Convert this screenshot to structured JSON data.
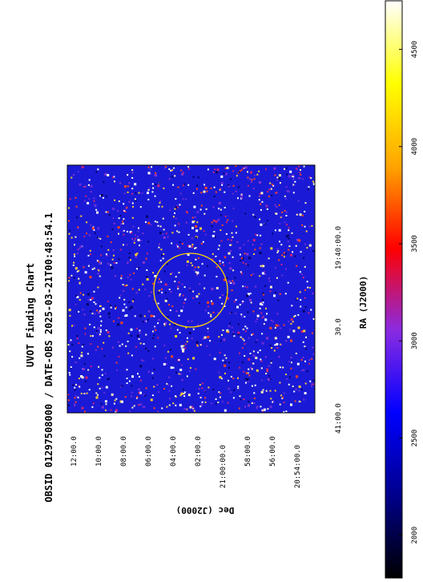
{
  "header": {
    "title": "UVOT Finding Chart",
    "subtitle": "OBSID 01297508000 / DATE-OBS 2025-03-21T00:48:54.1"
  },
  "axes": {
    "ra_label": "RA (J2000)",
    "dec_label": "Dec (J2000)",
    "ra_ticks": [
      "41:00.0",
      "30.0",
      "19:40:00.0"
    ],
    "dec_ticks": [
      "12:00.0",
      "10:00.0",
      "08:00.0",
      "06:00.0",
      "04:00.0",
      "02:00.0",
      "21:00:00.0",
      "58:00.0",
      "56:00.0",
      "20:54:00.0"
    ]
  },
  "colorbar": {
    "ticks": [
      "2000",
      "2500",
      "3000",
      "3500",
      "4000",
      "4500"
    ],
    "min": 1780,
    "max": 4750,
    "colormap": [
      "#000000",
      "#00008c",
      "#0000ff",
      "#8a2be2",
      "#ff0000",
      "#ffa500",
      "#ffff00",
      "#ffffff"
    ]
  },
  "image": {
    "background_color": "#1a1ad6",
    "region_color": "#ffd700"
  }
}
